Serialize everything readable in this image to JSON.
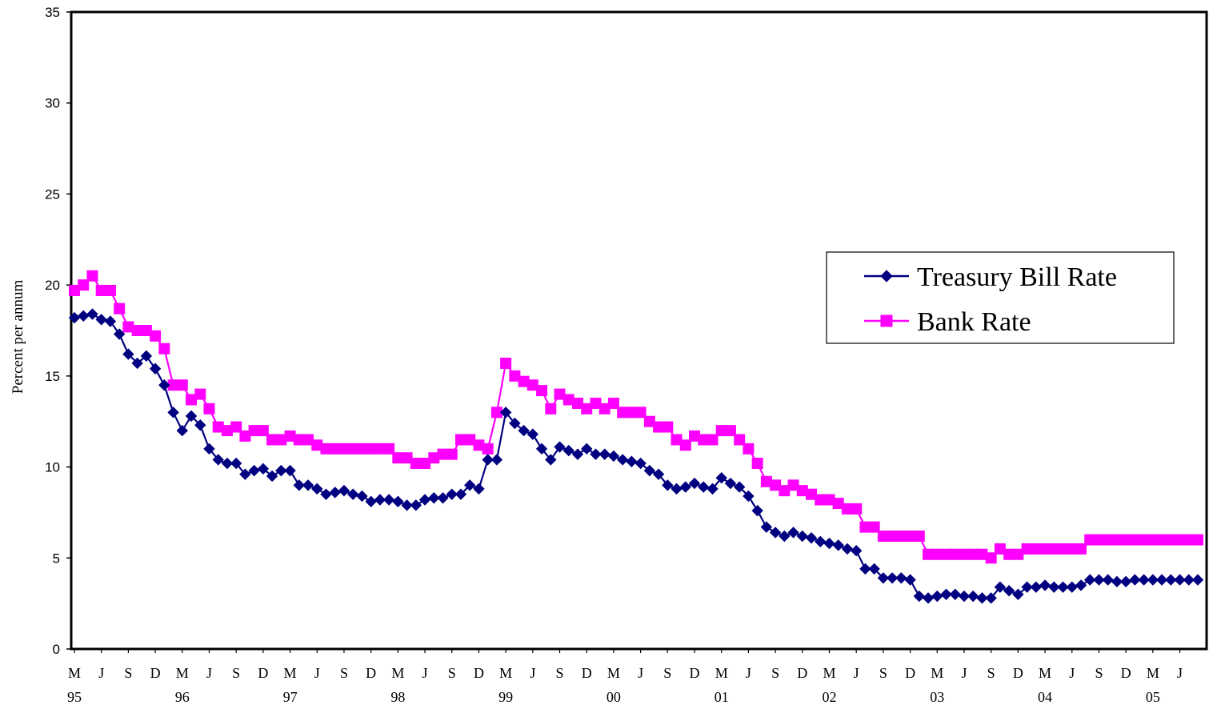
{
  "chart_data": {
    "type": "line",
    "title": "",
    "xlabel": "",
    "ylabel": "Percent per annum",
    "ylim": [
      0,
      35
    ],
    "yticks": [
      0,
      5,
      10,
      15,
      20,
      25,
      30,
      35
    ],
    "x_start": "1995-03",
    "x_end": "2005-06",
    "x_tick_labels": [
      {
        "month": "M",
        "year": "95"
      },
      {
        "month": "J",
        "year": ""
      },
      {
        "month": "S",
        "year": ""
      },
      {
        "month": "D",
        "year": ""
      },
      {
        "month": "M",
        "year": "96"
      },
      {
        "month": "J",
        "year": ""
      },
      {
        "month": "S",
        "year": ""
      },
      {
        "month": "D",
        "year": ""
      },
      {
        "month": "M",
        "year": "97"
      },
      {
        "month": "J",
        "year": ""
      },
      {
        "month": "S",
        "year": ""
      },
      {
        "month": "D",
        "year": ""
      },
      {
        "month": "M",
        "year": "98"
      },
      {
        "month": "J",
        "year": ""
      },
      {
        "month": "S",
        "year": ""
      },
      {
        "month": "D",
        "year": ""
      },
      {
        "month": "M",
        "year": "99"
      },
      {
        "month": "J",
        "year": ""
      },
      {
        "month": "S",
        "year": ""
      },
      {
        "month": "D",
        "year": ""
      },
      {
        "month": "M",
        "year": "00"
      },
      {
        "month": "J",
        "year": ""
      },
      {
        "month": "S",
        "year": ""
      },
      {
        "month": "D",
        "year": ""
      },
      {
        "month": "M",
        "year": "01"
      },
      {
        "month": "J",
        "year": ""
      },
      {
        "month": "S",
        "year": ""
      },
      {
        "month": "D",
        "year": ""
      },
      {
        "month": "M",
        "year": "02"
      },
      {
        "month": "J",
        "year": ""
      },
      {
        "month": "S",
        "year": ""
      },
      {
        "month": "D",
        "year": ""
      },
      {
        "month": "M",
        "year": "03"
      },
      {
        "month": "J",
        "year": ""
      },
      {
        "month": "S",
        "year": ""
      },
      {
        "month": "D",
        "year": ""
      },
      {
        "month": "M",
        "year": "04"
      },
      {
        "month": "J",
        "year": ""
      },
      {
        "month": "S",
        "year": ""
      },
      {
        "month": "D",
        "year": ""
      },
      {
        "month": "M",
        "year": "05"
      },
      {
        "month": "J",
        "year": ""
      }
    ],
    "grid": false,
    "legend_position": "right",
    "series": [
      {
        "name": "Treasury Bill Rate",
        "color": "#000080",
        "marker": "diamond",
        "values": [
          18.2,
          18.3,
          18.4,
          18.1,
          18.0,
          17.3,
          16.2,
          15.7,
          16.1,
          15.4,
          14.5,
          13.0,
          12.0,
          12.8,
          12.3,
          11.0,
          10.4,
          10.2,
          10.2,
          9.6,
          9.8,
          9.9,
          9.5,
          9.8,
          9.8,
          9.0,
          9.0,
          8.8,
          8.5,
          8.6,
          8.7,
          8.5,
          8.4,
          8.1,
          8.2,
          8.2,
          8.1,
          7.9,
          7.9,
          8.2,
          8.3,
          8.3,
          8.5,
          8.5,
          9.0,
          8.8,
          10.4,
          10.4,
          13.0,
          12.4,
          12.0,
          11.8,
          11.0,
          10.4,
          11.1,
          10.9,
          10.7,
          11.0,
          10.7,
          10.7,
          10.6,
          10.4,
          10.3,
          10.2,
          9.8,
          9.6,
          9.0,
          8.8,
          8.9,
          9.1,
          8.9,
          8.8,
          9.4,
          9.1,
          8.9,
          8.4,
          7.6,
          6.7,
          6.4,
          6.2,
          6.4,
          6.2,
          6.1,
          5.9,
          5.8,
          5.7,
          5.5,
          5.4,
          4.4,
          4.4,
          3.9,
          3.9,
          3.9,
          3.8,
          2.9,
          2.8,
          2.9,
          3.0,
          3.0,
          2.9,
          2.9,
          2.8,
          2.8,
          3.4,
          3.2,
          3.0,
          3.4,
          3.4,
          3.5,
          3.4,
          3.4,
          3.4,
          3.5,
          3.8,
          3.8,
          3.8,
          3.7,
          3.7,
          3.8,
          3.8,
          3.8,
          3.8,
          3.8,
          3.8,
          3.8,
          3.8
        ]
      },
      {
        "name": "Bank Rate",
        "color": "#ff00ff",
        "marker": "square",
        "values": [
          19.7,
          20.0,
          20.5,
          19.7,
          19.7,
          18.7,
          17.7,
          17.5,
          17.5,
          17.2,
          16.5,
          14.5,
          14.5,
          13.7,
          14.0,
          13.2,
          12.2,
          12.0,
          12.2,
          11.7,
          12.0,
          12.0,
          11.5,
          11.5,
          11.7,
          11.5,
          11.5,
          11.2,
          11.0,
          11.0,
          11.0,
          11.0,
          11.0,
          11.0,
          11.0,
          11.0,
          10.5,
          10.5,
          10.2,
          10.2,
          10.5,
          10.7,
          10.7,
          11.5,
          11.5,
          11.2,
          11.0,
          13.0,
          15.7,
          15.0,
          14.7,
          14.5,
          14.2,
          13.2,
          14.0,
          13.7,
          13.5,
          13.2,
          13.5,
          13.2,
          13.5,
          13.0,
          13.0,
          13.0,
          12.5,
          12.2,
          12.2,
          11.5,
          11.2,
          11.7,
          11.5,
          11.5,
          12.0,
          12.0,
          11.5,
          11.0,
          10.2,
          9.2,
          9.0,
          8.7,
          9.0,
          8.7,
          8.5,
          8.2,
          8.2,
          8.0,
          7.7,
          7.7,
          6.7,
          6.7,
          6.2,
          6.2,
          6.2,
          6.2,
          6.2,
          5.2,
          5.2,
          5.2,
          5.2,
          5.2,
          5.2,
          5.2,
          5.0,
          5.5,
          5.2,
          5.2,
          5.5,
          5.5,
          5.5,
          5.5,
          5.5,
          5.5,
          5.5,
          6.0,
          6.0,
          6.0,
          6.0,
          6.0,
          6.0,
          6.0,
          6.0,
          6.0,
          6.0,
          6.0,
          6.0,
          6.0
        ]
      }
    ]
  }
}
